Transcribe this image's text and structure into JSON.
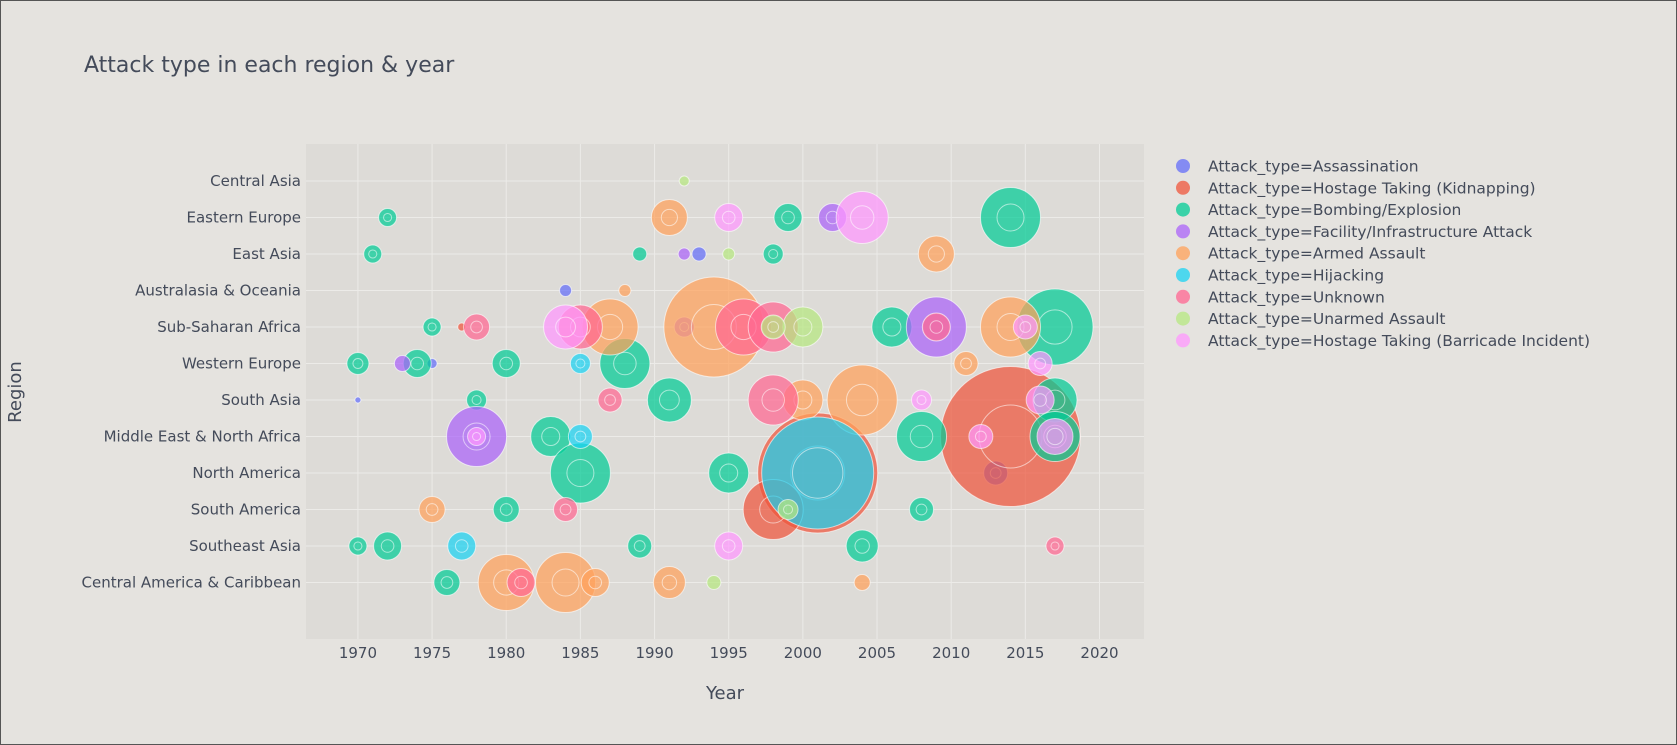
{
  "chart_data": {
    "type": "scatter",
    "title": "Attack type in each region & year",
    "xlabel": "Year",
    "ylabel": "Region",
    "xlim": [
      1966.5,
      2023
    ],
    "xticks": [
      1970,
      1975,
      1980,
      1985,
      1990,
      1995,
      2000,
      2005,
      2010,
      2015,
      2020
    ],
    "categories": [
      "Central Asia",
      "Eastern Europe",
      "East Asia",
      "Australasia & Oceania",
      "Sub-Saharan Africa",
      "Western Europe",
      "South Asia",
      "Middle East & North Africa",
      "North America",
      "South America",
      "Southeast Asia",
      "Central America & Caribbean"
    ],
    "grid": true,
    "legend_position": "right",
    "series": [
      {
        "name": "Attack_type=Assassination",
        "color": "#636efa",
        "points": [
          [
            1970,
            "South Asia",
            3
          ],
          [
            1984,
            "Australasia & Oceania",
            6
          ],
          [
            1993,
            "East Asia",
            7
          ],
          [
            1975,
            "Western Europe",
            5
          ],
          [
            2013,
            "North America",
            12
          ]
        ]
      },
      {
        "name": "Attack_type=Hostage Taking (Kidnapping)",
        "color": "#ef553b",
        "points": [
          [
            2001,
            "North America",
            60
          ],
          [
            2014,
            "Middle East & North Africa",
            70
          ],
          [
            1998,
            "South America",
            30
          ],
          [
            1977,
            "Sub-Saharan Africa",
            4
          ]
        ]
      },
      {
        "name": "Attack_type=Bombing/Explosion",
        "color": "#00cc96",
        "points": [
          [
            1971,
            "East Asia",
            9
          ],
          [
            1972,
            "Eastern Europe",
            9
          ],
          [
            1970,
            "Western Europe",
            11
          ],
          [
            1974,
            "Western Europe",
            14
          ],
          [
            1970,
            "Southeast Asia",
            9
          ],
          [
            1972,
            "Southeast Asia",
            14
          ],
          [
            1976,
            "Central America & Caribbean",
            13
          ],
          [
            1980,
            "South America",
            13
          ],
          [
            1980,
            "Western Europe",
            14
          ],
          [
            1983,
            "Middle East & North Africa",
            20
          ],
          [
            1985,
            "North America",
            30
          ],
          [
            1988,
            "Western Europe",
            25
          ],
          [
            1991,
            "South Asia",
            22
          ],
          [
            1995,
            "North America",
            20
          ],
          [
            1999,
            "Eastern Europe",
            14
          ],
          [
            2004,
            "Southeast Asia",
            16
          ],
          [
            2006,
            "Sub-Saharan Africa",
            20
          ],
          [
            2008,
            "Middle East & North Africa",
            25
          ],
          [
            2014,
            "Eastern Europe",
            30
          ],
          [
            2017,
            "Sub-Saharan Africa",
            38
          ],
          [
            2017,
            "South Asia",
            22
          ],
          [
            2017,
            "Middle East & North Africa",
            25
          ],
          [
            1975,
            "Sub-Saharan Africa",
            9
          ],
          [
            1978,
            "South Asia",
            10
          ],
          [
            1989,
            "East Asia",
            7
          ],
          [
            1998,
            "East Asia",
            10
          ],
          [
            2008,
            "South America",
            12
          ],
          [
            1989,
            "Southeast Asia",
            12
          ]
        ]
      },
      {
        "name": "Attack_type=Facility/Infrastructure Attack",
        "color": "#ab63fa",
        "points": [
          [
            1978,
            "Middle East & North Africa",
            30
          ],
          [
            1973,
            "Western Europe",
            8
          ],
          [
            2009,
            "Sub-Saharan Africa",
            30
          ],
          [
            2002,
            "Eastern Europe",
            14
          ],
          [
            1992,
            "East Asia",
            6
          ],
          [
            1992,
            "Sub-Saharan Africa",
            10
          ]
        ]
      },
      {
        "name": "Attack_type=Armed Assault",
        "color": "#ffa15a",
        "points": [
          [
            1980,
            "Central America & Caribbean",
            28
          ],
          [
            1984,
            "Central America & Caribbean",
            30
          ],
          [
            1991,
            "Eastern Europe",
            18
          ],
          [
            1994,
            "Sub-Saharan Africa",
            50
          ],
          [
            2009,
            "East Asia",
            18
          ],
          [
            2004,
            "South Asia",
            35
          ],
          [
            2014,
            "Sub-Saharan Africa",
            30
          ],
          [
            1975,
            "South America",
            13
          ],
          [
            1987,
            "Sub-Saharan Africa",
            28
          ],
          [
            1991,
            "Central America & Caribbean",
            16
          ],
          [
            2004,
            "Central America & Caribbean",
            8
          ],
          [
            1988,
            "Australasia & Oceania",
            6
          ],
          [
            2011,
            "Western Europe",
            12
          ],
          [
            1986,
            "Central America & Caribbean",
            14
          ],
          [
            2000,
            "South Asia",
            20
          ]
        ]
      },
      {
        "name": "Attack_type=Hijacking",
        "color": "#19d3f3",
        "points": [
          [
            2001,
            "North America",
            56
          ],
          [
            1977,
            "Southeast Asia",
            14
          ],
          [
            1985,
            "Middle East & North Africa",
            12
          ],
          [
            1985,
            "Western Europe",
            10
          ]
        ]
      },
      {
        "name": "Attack_type=Unknown",
        "color": "#ff6692",
        "points": [
          [
            1978,
            "Sub-Saharan Africa",
            13
          ],
          [
            1985,
            "Sub-Saharan Africa",
            22
          ],
          [
            1996,
            "Sub-Saharan Africa",
            28
          ],
          [
            1998,
            "South Asia",
            25
          ],
          [
            1998,
            "Sub-Saharan Africa",
            25
          ],
          [
            1981,
            "Central America & Caribbean",
            14
          ],
          [
            1987,
            "South Asia",
            12
          ],
          [
            2009,
            "Sub-Saharan Africa",
            14
          ],
          [
            2017,
            "Southeast Asia",
            9
          ],
          [
            1984,
            "South America",
            12
          ]
        ]
      },
      {
        "name": "Attack_type=Unarmed Assault",
        "color": "#b6e880",
        "points": [
          [
            2000,
            "Sub-Saharan Africa",
            20
          ],
          [
            1998,
            "Sub-Saharan Africa",
            12
          ],
          [
            1999,
            "South America",
            10
          ],
          [
            1994,
            "Central America & Caribbean",
            7
          ],
          [
            1995,
            "East Asia",
            6
          ],
          [
            1992,
            "Central Asia",
            5
          ]
        ]
      },
      {
        "name": "Attack_type=Hostage Taking (Barricade Incident)",
        "color": "#ff97ff",
        "points": [
          [
            2004,
            "Eastern Europe",
            26
          ],
          [
            1984,
            "Sub-Saharan Africa",
            22
          ],
          [
            1995,
            "Southeast Asia",
            14
          ],
          [
            1995,
            "Eastern Europe",
            14
          ],
          [
            2016,
            "Western Europe",
            12
          ],
          [
            2017,
            "Middle East & North Africa",
            18
          ],
          [
            2016,
            "South Asia",
            14
          ],
          [
            2008,
            "South Asia",
            10
          ],
          [
            1978,
            "Middle East & North Africa",
            9
          ],
          [
            2015,
            "Sub-Saharan Africa",
            12
          ],
          [
            2012,
            "Middle East & North Africa",
            12
          ]
        ]
      }
    ]
  }
}
